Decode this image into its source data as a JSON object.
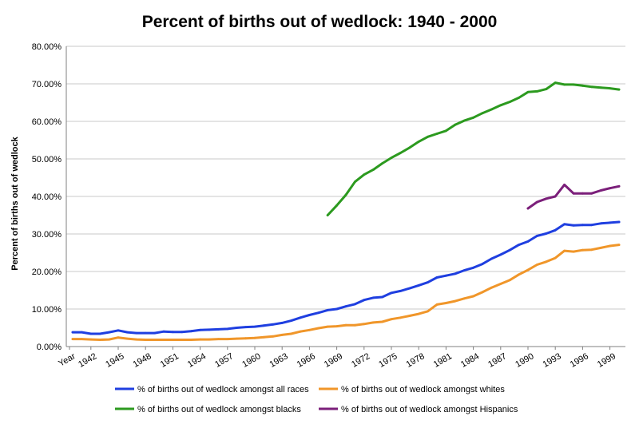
{
  "chart_data": {
    "type": "line",
    "title": "Percent of births out of wedlock: 1940 - 2000",
    "xlabel": "",
    "ylabel": "Percent of births out of wedlock",
    "ylim": [
      0,
      80
    ],
    "yticks": [
      "0.00%",
      "10.00%",
      "20.00%",
      "30.00%",
      "40.00%",
      "50.00%",
      "60.00%",
      "70.00%",
      "80.00%"
    ],
    "xticks": [
      "Year",
      "1942",
      "1945",
      "1948",
      "1951",
      "1954",
      "1957",
      "1960",
      "1963",
      "1966",
      "1969",
      "1972",
      "1975",
      "1978",
      "1981",
      "1984",
      "1987",
      "1990",
      "1993",
      "1996",
      "1999"
    ],
    "grid": true,
    "legend_position": "bottom",
    "x": [
      1940,
      1941,
      1942,
      1943,
      1944,
      1945,
      1946,
      1947,
      1948,
      1949,
      1950,
      1951,
      1952,
      1953,
      1954,
      1955,
      1956,
      1957,
      1958,
      1959,
      1960,
      1961,
      1962,
      1963,
      1964,
      1965,
      1966,
      1967,
      1968,
      1969,
      1970,
      1971,
      1972,
      1973,
      1974,
      1975,
      1976,
      1977,
      1978,
      1979,
      1980,
      1981,
      1982,
      1983,
      1984,
      1985,
      1986,
      1987,
      1988,
      1989,
      1990,
      1991,
      1992,
      1993,
      1994,
      1995,
      1996,
      1997,
      1998,
      1999,
      2000
    ],
    "series": [
      {
        "name": "% of births out of wedlock amongst all races",
        "color": "#1f3fe0",
        "values": [
          3.8,
          3.8,
          3.4,
          3.4,
          3.8,
          4.3,
          3.8,
          3.6,
          3.6,
          3.6,
          4.0,
          3.9,
          3.9,
          4.1,
          4.4,
          4.5,
          4.6,
          4.7,
          5.0,
          5.2,
          5.3,
          5.6,
          5.9,
          6.3,
          6.9,
          7.7,
          8.4,
          9.0,
          9.7,
          10.0,
          10.7,
          11.3,
          12.4,
          13.0,
          13.2,
          14.3,
          14.8,
          15.5,
          16.3,
          17.1,
          18.4,
          18.9,
          19.4,
          20.3,
          21.0,
          22.0,
          23.4,
          24.5,
          25.7,
          27.1,
          28.0,
          29.5,
          30.1,
          31.0,
          32.6,
          32.3,
          32.4,
          32.4,
          32.8,
          33.0,
          33.2
        ]
      },
      {
        "name": "% of births out of wedlock amongst whites",
        "color": "#f0962a",
        "values": [
          2.0,
          2.0,
          1.9,
          1.8,
          1.9,
          2.4,
          2.1,
          1.9,
          1.8,
          1.8,
          1.8,
          1.8,
          1.8,
          1.8,
          1.9,
          1.9,
          2.0,
          2.0,
          2.1,
          2.2,
          2.3,
          2.5,
          2.7,
          3.1,
          3.4,
          4.0,
          4.4,
          4.9,
          5.3,
          5.4,
          5.7,
          5.7,
          6.0,
          6.4,
          6.6,
          7.3,
          7.7,
          8.2,
          8.7,
          9.4,
          11.2,
          11.6,
          12.1,
          12.8,
          13.4,
          14.5,
          15.7,
          16.7,
          17.7,
          19.2,
          20.4,
          21.8,
          22.6,
          23.6,
          25.5,
          25.3,
          25.7,
          25.8,
          26.3,
          26.8,
          27.1
        ]
      },
      {
        "name": "% of births out of wedlock amongst blacks",
        "color": "#2c9a1f",
        "values": [
          null,
          null,
          null,
          null,
          null,
          null,
          null,
          null,
          null,
          null,
          null,
          null,
          null,
          null,
          null,
          null,
          null,
          null,
          null,
          null,
          null,
          null,
          null,
          null,
          null,
          null,
          null,
          null,
          35.0,
          37.6,
          40.4,
          43.9,
          45.8,
          47.1,
          48.8,
          50.3,
          51.6,
          53.0,
          54.6,
          55.9,
          56.7,
          57.5,
          59.1,
          60.2,
          61.0,
          62.2,
          63.2,
          64.3,
          65.2,
          66.3,
          67.8,
          68.0,
          68.6,
          70.3,
          69.8,
          69.8,
          69.5,
          69.2,
          69.0,
          68.8,
          68.5
        ]
      },
      {
        "name": "% of births out of wedlock amongst Hispanics",
        "color": "#7b1f7a",
        "values": [
          null,
          null,
          null,
          null,
          null,
          null,
          null,
          null,
          null,
          null,
          null,
          null,
          null,
          null,
          null,
          null,
          null,
          null,
          null,
          null,
          null,
          null,
          null,
          null,
          null,
          null,
          null,
          null,
          null,
          null,
          null,
          null,
          null,
          null,
          null,
          null,
          null,
          null,
          null,
          null,
          null,
          null,
          null,
          null,
          null,
          null,
          null,
          null,
          null,
          null,
          36.8,
          38.5,
          39.4,
          40.0,
          43.1,
          40.8,
          40.8,
          40.8,
          41.6,
          42.2,
          42.7
        ]
      }
    ]
  }
}
